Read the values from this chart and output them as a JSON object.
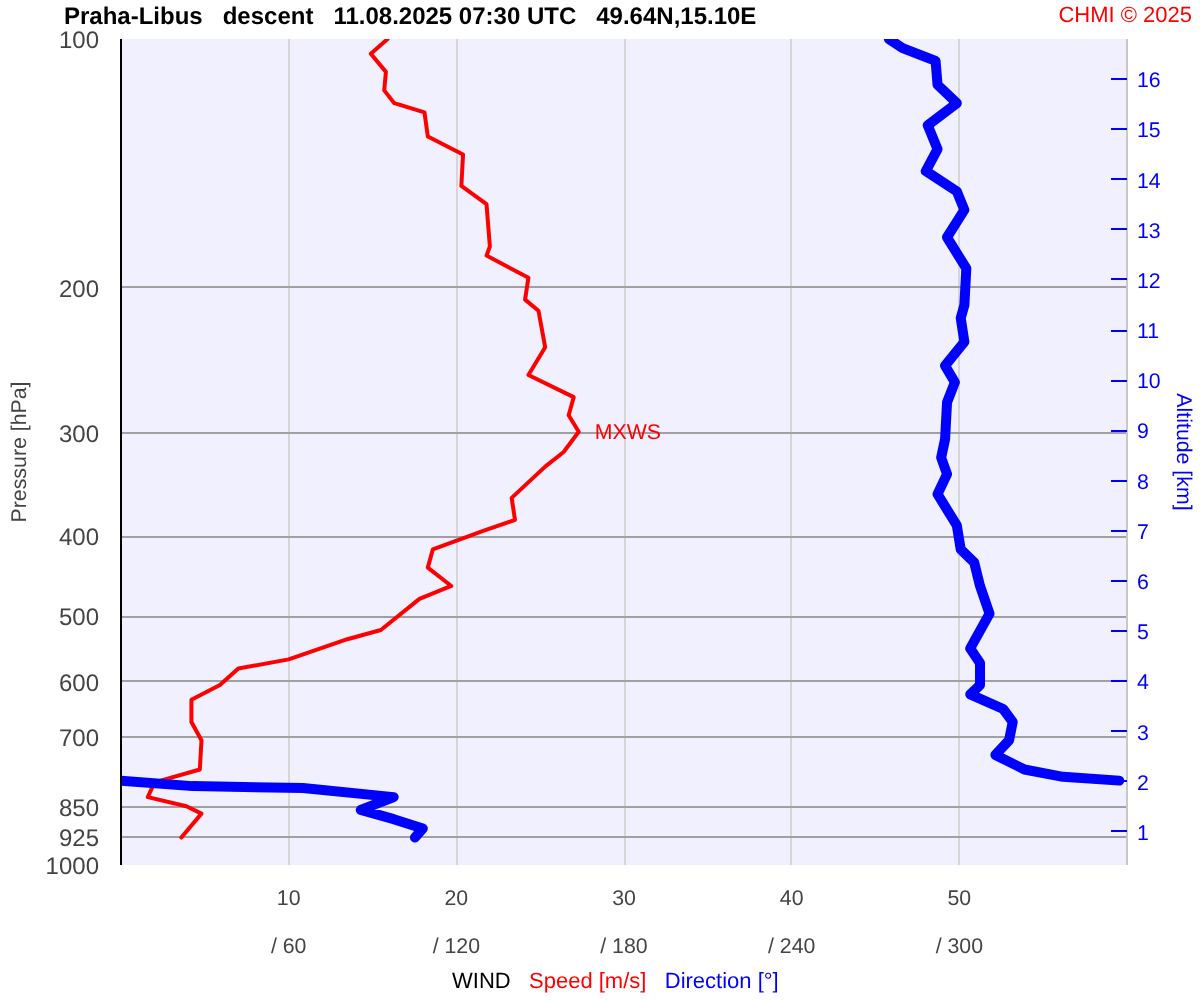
{
  "chart_data": {
    "type": "line",
    "title": "Praha-Libus   descent   11.08.2025 07:30 UTC   49.64N,15.10E",
    "xlabel": "WIND",
    "ylabel": "Pressure [hPa]",
    "y2label": "Altitude [km]",
    "annotations": [
      "CHMI © 2025",
      {
        "text": "MXWS",
        "x": 27.3,
        "y": 300
      }
    ],
    "xlim": [
      0,
      60
    ],
    "xticks": [
      10,
      20,
      30,
      40,
      50
    ],
    "x2lim": [
      0,
      360
    ],
    "x2ticks": [
      {
        "value": 60,
        "label": "/ 60"
      },
      {
        "value": 120,
        "label": "/ 120"
      },
      {
        "value": 180,
        "label": "/ 180"
      },
      {
        "value": 240,
        "label": "/ 240"
      },
      {
        "value": 300,
        "label": "/ 300"
      }
    ],
    "ylim": [
      1000,
      100
    ],
    "yticks": [
      100,
      200,
      300,
      400,
      500,
      600,
      700,
      850,
      925,
      1000
    ],
    "y2lim": [
      0.34,
      16.8
    ],
    "y2ticks": [
      1,
      2,
      3,
      4,
      5,
      6,
      7,
      8,
      9,
      10,
      11,
      12,
      13,
      14,
      15,
      16
    ],
    "log": "y",
    "grid": true,
    "legend": "bottom",
    "marker": "none",
    "line_style": "solid",
    "series": [
      {
        "name": "Speed [m/s]",
        "color": "#ff0000",
        "x": [
          15.9,
          14.9,
          15.8,
          15.7,
          16.3,
          18.1,
          18.3,
          20.4,
          20.3,
          21.8,
          22.0,
          21.8,
          24.3,
          24.1,
          24.9,
          25.3,
          24.3,
          27.0,
          26.7,
          27.3,
          26.4,
          25.3,
          23.3,
          23.5,
          21.6,
          18.6,
          18.3,
          19.7,
          17.8,
          15.5,
          13.5,
          10.0,
          7.0,
          5.9,
          4.2,
          4.2,
          4.8,
          4.7,
          2.0,
          1.6,
          3.9,
          4.8,
          3.6
        ],
        "values": [
          100,
          104.2,
          109.6,
          115.4,
          119.6,
          122.7,
          131.2,
          138.0,
          150.6,
          158.5,
          178.3,
          182.9,
          194.5,
          206.8,
          213.3,
          236.2,
          255.1,
          271.4,
          285.5,
          298.9,
          316.2,
          329.4,
          359.4,
          382.2,
          394.1,
          414.8,
          436.5,
          459.4,
          476.2,
          519.4,
          532.9,
          563.7,
          578.3,
          605.6,
          631.0,
          671.1,
          706.3,
          766.2,
          794.3,
          827.6,
          849.1,
          866.5,
          926.3
        ]
      },
      {
        "name": "Direction [°]",
        "color": "#0000ff",
        "axis": "x2",
        "x": [
          274.8,
          279.7,
          291.5,
          292.2,
          299.1,
          288.7,
          292.2,
          288.0,
          299.1,
          301.8,
          295.6,
          302.5,
          301.8,
          300.5,
          301.8,
          294.9,
          298.4,
          295.6,
          294.9,
          293.5,
          295.6,
          292.2,
          299.1,
          300.5,
          305.3,
          307.4,
          310.8,
          303.9,
          307.4,
          307.4,
          303.9,
          315.7,
          319.1,
          317.8,
          312.9,
          323.3,
          337.1,
          357.2,
          null,
          0,
          25.6,
          65.1,
          97.6,
          85.8,
          97.6,
          108.0,
          105.2
        ],
        "values": [
          100,
          102.6,
          106.3,
          113.6,
          119.6,
          127.2,
          135.9,
          144.5,
          152.9,
          161.0,
          173.8,
          189.6,
          210.0,
          217.7,
          232.6,
          248.6,
          260.3,
          275.4,
          305.1,
          321.2,
          336.3,
          355.7,
          388.1,
          414.8,
          430.1,
          459.4,
          496.2,
          546.8,
          569.5,
          605.6,
          621.4,
          647.4,
          671.1,
          706.3,
          735.8,
          766.2,
          782.1,
          790.4,
          null,
          790.4,
          802.6,
          806.8,
          827.6,
          857.7,
          880.0,
          903.3,
          926.3
        ]
      }
    ]
  }
}
